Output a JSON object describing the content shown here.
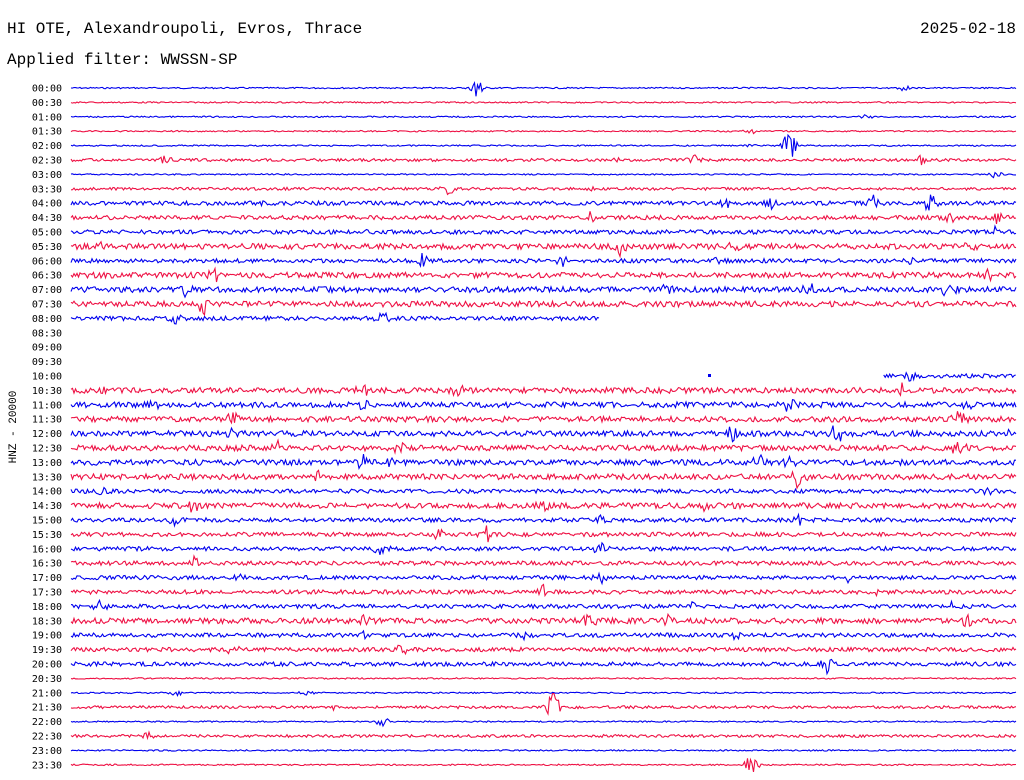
{
  "header": {
    "title": "HI OTE, Alexandroupoli, Evros, Thrace",
    "date": "2025-02-18",
    "filter": "Applied filter: WWSSN-SP"
  },
  "axis_label": "HNZ - 20000",
  "colors": {
    "blue": "#0000ee",
    "red": "#ee1144"
  },
  "rows": [
    {
      "time": "00:00",
      "color": "blue",
      "amp": 1,
      "bursts": [
        [
          0.43,
          10
        ],
        [
          0.88,
          3
        ]
      ]
    },
    {
      "time": "00:30",
      "color": "red",
      "amp": 1,
      "bursts": []
    },
    {
      "time": "01:00",
      "color": "blue",
      "amp": 1,
      "bursts": [
        [
          0.84,
          3
        ]
      ]
    },
    {
      "time": "01:30",
      "color": "red",
      "amp": 1,
      "bursts": [
        [
          0.72,
          3
        ]
      ]
    },
    {
      "time": "02:00",
      "color": "blue",
      "amp": 1,
      "bursts": [
        [
          0.76,
          16
        ],
        [
          0.72,
          3
        ]
      ]
    },
    {
      "time": "02:30",
      "color": "red",
      "amp": 2,
      "bursts": [
        [
          0.1,
          6
        ],
        [
          0.58,
          4
        ],
        [
          0.66,
          5
        ],
        [
          0.9,
          5
        ]
      ]
    },
    {
      "time": "03:00",
      "color": "blue",
      "amp": 1,
      "bursts": [
        [
          0.98,
          5
        ]
      ]
    },
    {
      "time": "03:30",
      "color": "red",
      "amp": 2,
      "bursts": [
        [
          0.4,
          7
        ],
        [
          0.55,
          3
        ]
      ]
    },
    {
      "time": "04:00",
      "color": "blue",
      "amp": 3,
      "bursts": [
        [
          0.2,
          5
        ],
        [
          0.5,
          4
        ],
        [
          0.69,
          9
        ],
        [
          0.74,
          8
        ],
        [
          0.85,
          8
        ],
        [
          0.91,
          10
        ]
      ]
    },
    {
      "time": "04:30",
      "color": "red",
      "amp": 3,
      "bursts": [
        [
          0.55,
          5
        ],
        [
          0.93,
          6
        ],
        [
          0.98,
          7
        ]
      ]
    },
    {
      "time": "05:00",
      "color": "blue",
      "amp": 3,
      "bursts": [
        [
          0.32,
          4
        ],
        [
          0.98,
          6
        ]
      ]
    },
    {
      "time": "05:30",
      "color": "red",
      "amp": 4,
      "bursts": [
        [
          0.03,
          7
        ],
        [
          0.58,
          9
        ],
        [
          0.7,
          7
        ],
        [
          0.95,
          6
        ]
      ]
    },
    {
      "time": "06:00",
      "color": "blue",
      "amp": 3,
      "bursts": [
        [
          0.37,
          8
        ],
        [
          0.52,
          5
        ],
        [
          0.68,
          5
        ],
        [
          0.89,
          5
        ]
      ]
    },
    {
      "time": "06:30",
      "color": "red",
      "amp": 4,
      "bursts": [
        [
          0.15,
          9
        ],
        [
          0.97,
          6
        ]
      ]
    },
    {
      "time": "07:00",
      "color": "blue",
      "amp": 4,
      "bursts": [
        [
          0.12,
          8
        ],
        [
          0.63,
          6
        ],
        [
          0.78,
          8
        ],
        [
          0.93,
          9
        ]
      ]
    },
    {
      "time": "07:30",
      "color": "red",
      "amp": 4,
      "bursts": [
        [
          0.14,
          10
        ],
        [
          0.47,
          5
        ]
      ]
    },
    {
      "time": "08:00",
      "color": "blue",
      "amp": 3,
      "end": 0.56,
      "bursts": [
        [
          0.11,
          6
        ],
        [
          0.33,
          8
        ]
      ]
    },
    {
      "time": "08:30",
      "color": "red",
      "amp": 0,
      "gap": true,
      "bursts": []
    },
    {
      "time": "09:00",
      "color": "blue",
      "amp": 0,
      "gap": true,
      "bursts": []
    },
    {
      "time": "09:30",
      "color": "red",
      "amp": 0,
      "gap": true,
      "bursts": []
    },
    {
      "time": "10:00",
      "color": "blue",
      "amp": 3,
      "start": 0.86,
      "bursts": [
        [
          0.89,
          5
        ]
      ]
    },
    {
      "time": "10:30",
      "color": "red",
      "amp": 4,
      "bursts": [
        [
          0.03,
          5
        ],
        [
          0.31,
          7
        ],
        [
          0.41,
          9
        ],
        [
          0.88,
          6
        ]
      ]
    },
    {
      "time": "11:00",
      "color": "blue",
      "amp": 4,
      "bursts": [
        [
          0.09,
          6
        ],
        [
          0.31,
          6
        ],
        [
          0.76,
          6
        ],
        [
          0.95,
          6
        ]
      ]
    },
    {
      "time": "11:30",
      "color": "red",
      "amp": 4,
      "bursts": [
        [
          0.17,
          7
        ],
        [
          0.94,
          9
        ]
      ]
    },
    {
      "time": "12:00",
      "color": "blue",
      "amp": 4,
      "bursts": [
        [
          0.17,
          9
        ],
        [
          0.7,
          12
        ],
        [
          0.81,
          10
        ],
        [
          1.0,
          8
        ]
      ]
    },
    {
      "time": "12:30",
      "color": "red",
      "amp": 4,
      "bursts": [
        [
          0.22,
          7
        ],
        [
          0.35,
          7
        ],
        [
          0.94,
          11
        ]
      ]
    },
    {
      "time": "13:00",
      "color": "blue",
      "amp": 4,
      "bursts": [
        [
          0.31,
          10
        ],
        [
          0.34,
          8
        ],
        [
          0.73,
          9
        ],
        [
          0.76,
          6
        ]
      ]
    },
    {
      "time": "13:30",
      "color": "red",
      "amp": 4,
      "bursts": [
        [
          0.26,
          6
        ],
        [
          0.77,
          13
        ]
      ]
    },
    {
      "time": "14:00",
      "color": "blue",
      "amp": 3,
      "bursts": [
        [
          0.03,
          6
        ],
        [
          0.97,
          8
        ]
      ]
    },
    {
      "time": "14:30",
      "color": "red",
      "amp": 4,
      "bursts": [
        [
          0.13,
          6
        ],
        [
          0.5,
          5
        ],
        [
          0.67,
          7
        ]
      ]
    },
    {
      "time": "15:00",
      "color": "blue",
      "amp": 3,
      "bursts": [
        [
          0.11,
          6
        ],
        [
          0.56,
          6
        ],
        [
          0.77,
          5
        ]
      ]
    },
    {
      "time": "15:30",
      "color": "red",
      "amp": 3,
      "bursts": [
        [
          0.39,
          6
        ],
        [
          0.44,
          8
        ]
      ]
    },
    {
      "time": "16:00",
      "color": "blue",
      "amp": 3,
      "bursts": [
        [
          0.33,
          12
        ],
        [
          0.56,
          6
        ]
      ]
    },
    {
      "time": "16:30",
      "color": "red",
      "amp": 3,
      "bursts": [
        [
          0.13,
          8
        ],
        [
          0.35,
          5
        ]
      ]
    },
    {
      "time": "17:00",
      "color": "blue",
      "amp": 3,
      "bursts": [
        [
          0.18,
          5
        ],
        [
          0.56,
          6
        ],
        [
          0.82,
          7
        ]
      ]
    },
    {
      "time": "17:30",
      "color": "red",
      "amp": 3,
      "bursts": [
        [
          0.5,
          7
        ],
        [
          0.85,
          5
        ]
      ]
    },
    {
      "time": "18:00",
      "color": "blue",
      "amp": 3,
      "bursts": [
        [
          0.03,
          6
        ],
        [
          0.66,
          6
        ],
        [
          0.93,
          5
        ]
      ]
    },
    {
      "time": "18:30",
      "color": "red",
      "amp": 4,
      "bursts": [
        [
          0.31,
          6
        ],
        [
          0.55,
          10
        ],
        [
          0.63,
          10
        ],
        [
          0.95,
          8
        ]
      ]
    },
    {
      "time": "19:00",
      "color": "blue",
      "amp": 3,
      "bursts": [
        [
          0.31,
          6
        ],
        [
          0.48,
          7
        ],
        [
          0.7,
          6
        ]
      ]
    },
    {
      "time": "19:30",
      "color": "red",
      "amp": 3,
      "bursts": [
        [
          0.17,
          6
        ],
        [
          0.35,
          5
        ]
      ]
    },
    {
      "time": "20:00",
      "color": "blue",
      "amp": 3,
      "bursts": [
        [
          0.8,
          10
        ]
      ]
    },
    {
      "time": "20:30",
      "color": "red",
      "amp": 1,
      "bursts": []
    },
    {
      "time": "21:00",
      "color": "blue",
      "amp": 1,
      "bursts": [
        [
          0.11,
          4
        ],
        [
          0.25,
          3
        ]
      ]
    },
    {
      "time": "21:30",
      "color": "red",
      "amp": 2,
      "bursts": [
        [
          0.51,
          17
        ],
        [
          0.28,
          3
        ]
      ]
    },
    {
      "time": "22:00",
      "color": "blue",
      "amp": 1,
      "bursts": [
        [
          0.33,
          6
        ]
      ]
    },
    {
      "time": "22:30",
      "color": "red",
      "amp": 2,
      "bursts": [
        [
          0.08,
          5
        ]
      ]
    },
    {
      "time": "23:00",
      "color": "blue",
      "amp": 1,
      "bursts": []
    },
    {
      "time": "23:30",
      "color": "red",
      "amp": 1,
      "bursts": [
        [
          0.72,
          11
        ]
      ]
    }
  ]
}
